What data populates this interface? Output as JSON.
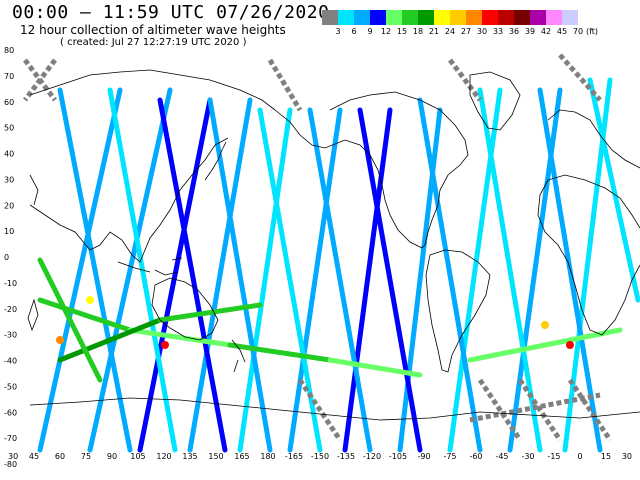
{
  "header": {
    "title": "00:00 – 11:59 UTC 07/26/2020",
    "subtitle": "12 hour collection of altimeter wave heights",
    "created": "( created: Jul 27 12:27:19 UTC 2020 )"
  },
  "legend": {
    "colors": [
      "#808080",
      "#00e5ff",
      "#00aaff",
      "#0000ff",
      "#66ff66",
      "#22cc22",
      "#009900",
      "#ffff00",
      "#ffcc00",
      "#ff8800",
      "#ff0000",
      "#bb0000",
      "#770000",
      "#aa00aa",
      "#ff88ff",
      "#ccccff"
    ],
    "ticks": [
      "3",
      "6",
      "9",
      "12",
      "15",
      "18",
      "21",
      "24",
      "27",
      "30",
      "33",
      "36",
      "39",
      "42",
      "45",
      "70"
    ],
    "unit": "(ft)"
  },
  "map": {
    "lon_labels": [
      "30",
      "45",
      "60",
      "75",
      "90",
      "105",
      "120",
      "135",
      "150",
      "165",
      "180",
      "-165",
      "-150",
      "-135",
      "-120",
      "-105",
      "-90",
      "-75",
      "-60",
      "-45",
      "-30",
      "-15",
      "0",
      "15",
      "30"
    ],
    "lat_labels": [
      "80",
      "70",
      "60",
      "50",
      "40",
      "30",
      "20",
      "10",
      "0",
      "-10",
      "-20",
      "-30",
      "-40",
      "-50",
      "-60",
      "-70",
      "-80"
    ],
    "lat_values": [
      80,
      70,
      60,
      50,
      40,
      30,
      20,
      10,
      0,
      -10,
      -20,
      -30,
      -40,
      -50,
      -60,
      -70,
      -80
    ]
  }
}
